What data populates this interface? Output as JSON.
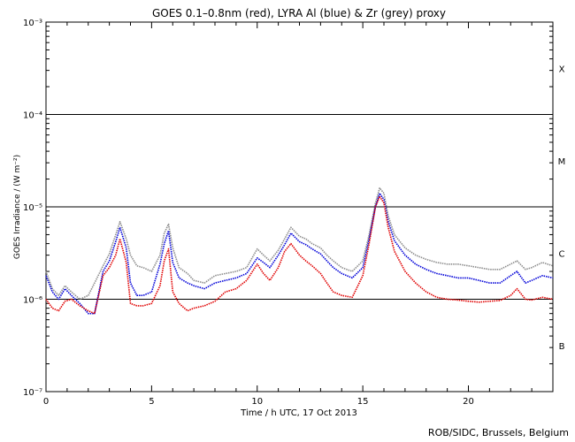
{
  "chart_data": {
    "type": "line",
    "title": "GOES 0.1–0.8nm (red), LYRA Al (blue) & Zr (grey) proxy",
    "xlabel": "Time / h UTC, 17 Oct 2013",
    "ylabel": "GOES Irradiance / (W m⁻²)",
    "xlim": [
      0,
      24
    ],
    "ylim_log10": [
      -7,
      -3
    ],
    "yscale": "log",
    "xticks": [
      0,
      5,
      10,
      15,
      20
    ],
    "xtick_labels": [
      "0",
      "5",
      "10",
      "15",
      "20"
    ],
    "yticks_exp": [
      -7,
      -6,
      -5,
      -4,
      -3
    ],
    "ytick_labels": [
      "10⁻⁷",
      "10⁻⁶",
      "10⁻⁵",
      "10⁻⁴",
      "10⁻³"
    ],
    "threshold_lines": [
      1e-06,
      1e-05,
      0.0001
    ],
    "flare_classes": [
      {
        "label": "X",
        "at_log10": -3.5
      },
      {
        "label": "M",
        "at_log10": -4.5
      },
      {
        "label": "C",
        "at_log10": -5.5
      },
      {
        "label": "B",
        "at_log10": -6.5
      }
    ],
    "series": [
      {
        "name": "LYRA Zr (grey) proxy",
        "color": "#8c8c8c",
        "x": [
          0.0,
          0.3,
          0.6,
          0.9,
          1.2,
          1.6,
          2.0,
          2.3,
          2.7,
          3.0,
          3.3,
          3.5,
          3.8,
          4.0,
          4.3,
          4.6,
          5.0,
          5.4,
          5.6,
          5.8,
          6.0,
          6.3,
          6.7,
          7.0,
          7.5,
          8.0,
          8.5,
          9.0,
          9.5,
          10.0,
          10.3,
          10.6,
          11.0,
          11.3,
          11.6,
          12.0,
          12.3,
          12.6,
          13.0,
          13.3,
          13.6,
          14.0,
          14.5,
          15.0,
          15.3,
          15.6,
          15.8,
          16.0,
          16.2,
          16.5,
          17.0,
          17.5,
          18.0,
          18.5,
          19.0,
          19.5,
          20.0,
          20.5,
          21.0,
          21.5,
          22.0,
          22.3,
          22.7,
          23.0,
          23.5,
          24.0
        ],
        "y": [
          2e-06,
          1.3e-06,
          1.1e-06,
          1.4e-06,
          1.2e-06,
          1e-06,
          1.1e-06,
          1.5e-06,
          2.3e-06,
          3.1e-06,
          5e-06,
          6.9e-06,
          4.5e-06,
          3e-06,
          2.3e-06,
          2.2e-06,
          2e-06,
          3e-06,
          5.2e-06,
          6.5e-06,
          3.6e-06,
          2.2e-06,
          1.9e-06,
          1.6e-06,
          1.5e-06,
          1.8e-06,
          1.9e-06,
          2e-06,
          2.2e-06,
          3.5e-06,
          3e-06,
          2.6e-06,
          3.4e-06,
          4.5e-06,
          6e-06,
          4.8e-06,
          4.5e-06,
          4e-06,
          3.6e-06,
          3e-06,
          2.6e-06,
          2.2e-06,
          2e-06,
          2.6e-06,
          5e-06,
          1.1e-05,
          1.6e-05,
          1.4e-05,
          8e-06,
          5e-06,
          3.6e-06,
          3e-06,
          2.7e-06,
          2.5e-06,
          2.4e-06,
          2.4e-06,
          2.3e-06,
          2.2e-06,
          2.1e-06,
          2.1e-06,
          2.4e-06,
          2.6e-06,
          2.1e-06,
          2.2e-06,
          2.5e-06,
          2.3e-06
        ]
      },
      {
        "name": "LYRA Al (blue) proxy",
        "color": "#0000d8",
        "x": [
          0.0,
          0.3,
          0.6,
          0.9,
          1.2,
          1.6,
          2.0,
          2.3,
          2.7,
          3.0,
          3.3,
          3.5,
          3.8,
          4.0,
          4.3,
          4.6,
          5.0,
          5.4,
          5.6,
          5.8,
          6.0,
          6.3,
          6.7,
          7.0,
          7.5,
          8.0,
          8.5,
          9.0,
          9.5,
          10.0,
          10.3,
          10.6,
          11.0,
          11.3,
          11.6,
          12.0,
          12.3,
          12.6,
          13.0,
          13.3,
          13.6,
          14.0,
          14.5,
          15.0,
          15.3,
          15.6,
          15.8,
          16.0,
          16.2,
          16.5,
          17.0,
          17.5,
          18.0,
          18.5,
          19.0,
          19.5,
          20.0,
          20.5,
          21.0,
          21.5,
          22.0,
          22.3,
          22.7,
          23.0,
          23.5,
          24.0
        ],
        "y": [
          1.8e-06,
          1.2e-06,
          1e-06,
          1.3e-06,
          1.1e-06,
          9e-07,
          7e-07,
          7e-07,
          2e-06,
          2.6e-06,
          4.2e-06,
          6e-06,
          3.6e-06,
          1.5e-06,
          1.1e-06,
          1.1e-06,
          1.2e-06,
          2.4e-06,
          4e-06,
          5.5e-06,
          2.5e-06,
          1.7e-06,
          1.5e-06,
          1.4e-06,
          1.3e-06,
          1.5e-06,
          1.6e-06,
          1.7e-06,
          1.9e-06,
          2.8e-06,
          2.5e-06,
          2.2e-06,
          3e-06,
          3.9e-06,
          5.2e-06,
          4.2e-06,
          3.9e-06,
          3.5e-06,
          3.1e-06,
          2.6e-06,
          2.2e-06,
          1.9e-06,
          1.7e-06,
          2.2e-06,
          4.5e-06,
          1e-05,
          1.4e-05,
          1.2e-05,
          7e-06,
          4.3e-06,
          3e-06,
          2.4e-06,
          2.1e-06,
          1.9e-06,
          1.8e-06,
          1.7e-06,
          1.7e-06,
          1.6e-06,
          1.5e-06,
          1.5e-06,
          1.8e-06,
          2e-06,
          1.5e-06,
          1.6e-06,
          1.8e-06,
          1.7e-06
        ]
      },
      {
        "name": "GOES 0.1–0.8nm (red)",
        "color": "#e00000",
        "x": [
          0.0,
          0.3,
          0.6,
          0.9,
          1.2,
          1.6,
          2.0,
          2.3,
          2.7,
          3.0,
          3.3,
          3.5,
          3.8,
          4.0,
          4.3,
          4.6,
          5.0,
          5.4,
          5.6,
          5.8,
          6.0,
          6.3,
          6.7,
          7.0,
          7.5,
          8.0,
          8.5,
          9.0,
          9.5,
          10.0,
          10.3,
          10.6,
          11.0,
          11.3,
          11.6,
          12.0,
          12.3,
          12.6,
          13.0,
          13.3,
          13.6,
          14.0,
          14.5,
          15.0,
          15.3,
          15.6,
          15.8,
          16.0,
          16.2,
          16.5,
          17.0,
          17.5,
          18.0,
          18.5,
          19.0,
          19.5,
          20.0,
          20.5,
          21.0,
          21.5,
          22.0,
          22.3,
          22.7,
          23.0,
          23.5,
          24.0
        ],
        "y": [
          1e-06,
          8e-07,
          7.5e-07,
          9.5e-07,
          1e-06,
          8.5e-07,
          7.5e-07,
          7e-07,
          1.8e-06,
          2.2e-06,
          3e-06,
          4.5e-06,
          2.5e-06,
          9e-07,
          8.5e-07,
          8.5e-07,
          9e-07,
          1.4e-06,
          2.6e-06,
          3.5e-06,
          1.2e-06,
          9e-07,
          7.5e-07,
          8e-07,
          8.5e-07,
          9.5e-07,
          1.2e-06,
          1.3e-06,
          1.6e-06,
          2.4e-06,
          1.9e-06,
          1.6e-06,
          2.2e-06,
          3.3e-06,
          4e-06,
          3e-06,
          2.6e-06,
          2.3e-06,
          1.9e-06,
          1.5e-06,
          1.2e-06,
          1.1e-06,
          1.05e-06,
          1.8e-06,
          4e-06,
          1e-05,
          1.3e-05,
          1.1e-05,
          6e-06,
          3.3e-06,
          2e-06,
          1.5e-06,
          1.2e-06,
          1.05e-06,
          1e-06,
          9.8e-07,
          9.5e-07,
          9.3e-07,
          9.5e-07,
          9.7e-07,
          1.1e-06,
          1.3e-06,
          1e-06,
          9.8e-07,
          1.05e-06,
          1e-06
        ]
      }
    ]
  },
  "credit": "ROB/SIDC, Brussels, Belgium"
}
